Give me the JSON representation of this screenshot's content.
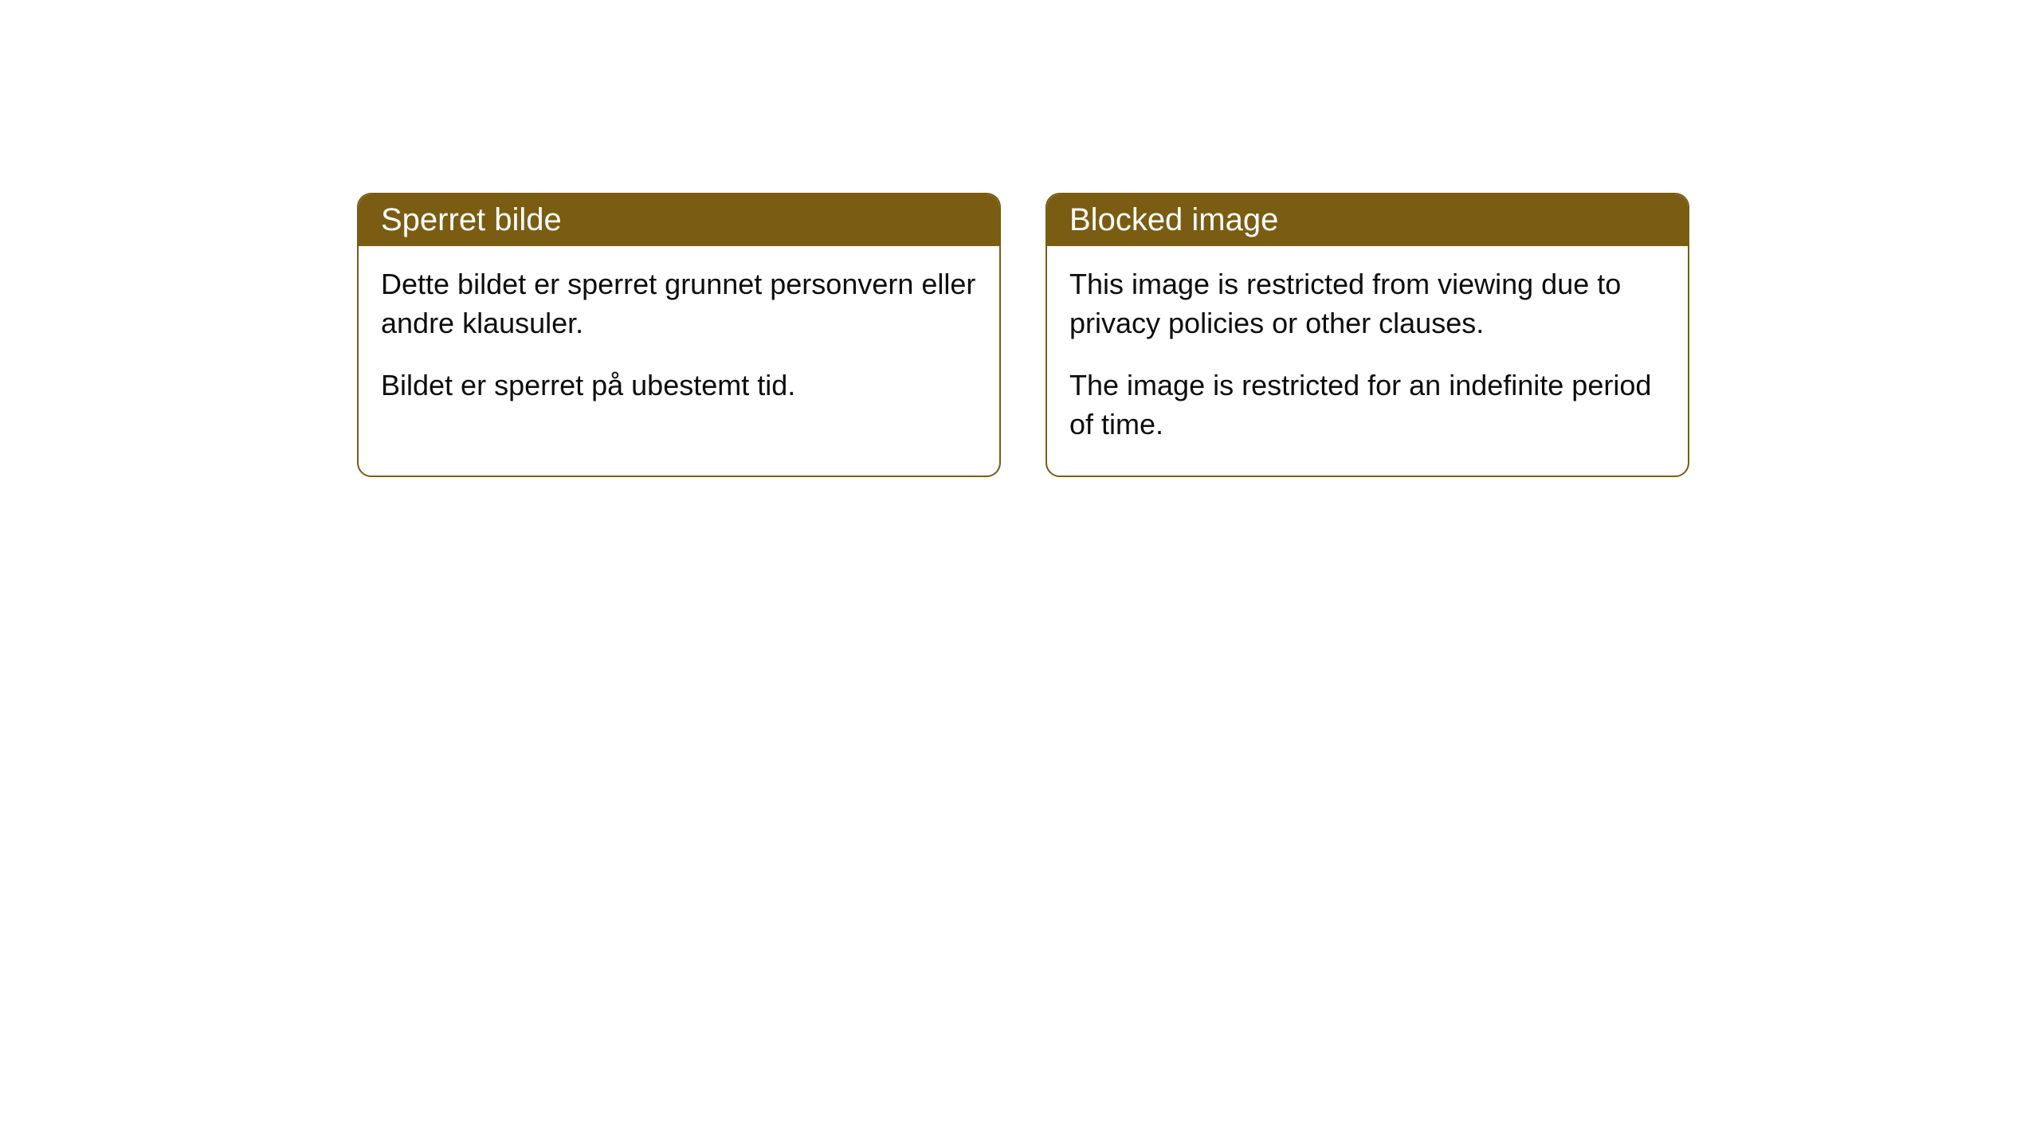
{
  "theme": {
    "header_bg": "#7a5d13",
    "header_text": "#ffffff",
    "border_color": "#7a5d13",
    "body_text": "#0d0d0d",
    "page_bg": "#ffffff"
  },
  "cards": [
    {
      "title": "Sperret bilde",
      "paragraphs": [
        "Dette bildet er sperret grunnet personvern eller andre klausuler.",
        "Bildet er sperret på ubestemt tid."
      ]
    },
    {
      "title": "Blocked image",
      "paragraphs": [
        "This image is restricted from viewing due to privacy policies or other clauses.",
        "The image is restricted for an indefinite period of time."
      ]
    }
  ]
}
